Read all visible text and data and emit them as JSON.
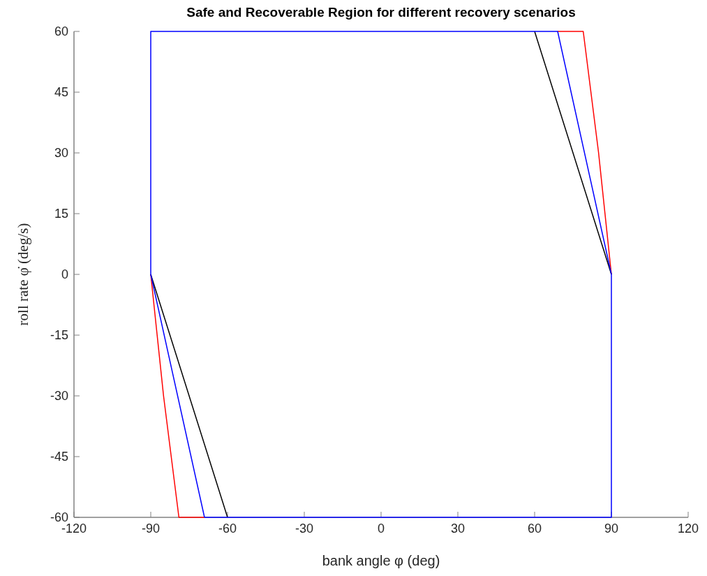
{
  "chart_data": {
    "type": "line",
    "title": "Safe and Recoverable Region for different recovery scenarios",
    "xlabel": "bank angle φ (deg)",
    "ylabel": "roll rate φ̇ (deg/s)",
    "xlim": [
      -120,
      120
    ],
    "xticks": [
      -120,
      -90,
      -60,
      -30,
      0,
      30,
      60,
      90,
      120
    ],
    "ylim": [
      -60,
      60
    ],
    "yticks": [
      -60,
      -45,
      -30,
      -15,
      0,
      15,
      30,
      45,
      60
    ],
    "grid": false,
    "marker": "none",
    "line_style": "solid",
    "series": [
      {
        "color": "#ff0000",
        "x": [
          69,
          79,
          82,
          85,
          87.5,
          90,
          null,
          -69,
          -79,
          -82,
          -85,
          -87.5,
          -90
        ],
        "values": [
          60,
          60,
          45,
          30,
          15,
          0,
          null,
          -60,
          -60,
          -45,
          -30,
          -15,
          0
        ]
      },
      {
        "color": "#000000",
        "x": [
          60,
          90,
          null,
          -60,
          -90
        ],
        "values": [
          60,
          0,
          null,
          -60,
          0
        ]
      },
      {
        "color": "#0000ff",
        "x": [
          -90,
          -90,
          69,
          90,
          90,
          -69,
          null,
          -69,
          -90
        ],
        "values": [
          0,
          60,
          60,
          0,
          -60,
          -60,
          null,
          -60,
          0
        ]
      }
    ]
  }
}
